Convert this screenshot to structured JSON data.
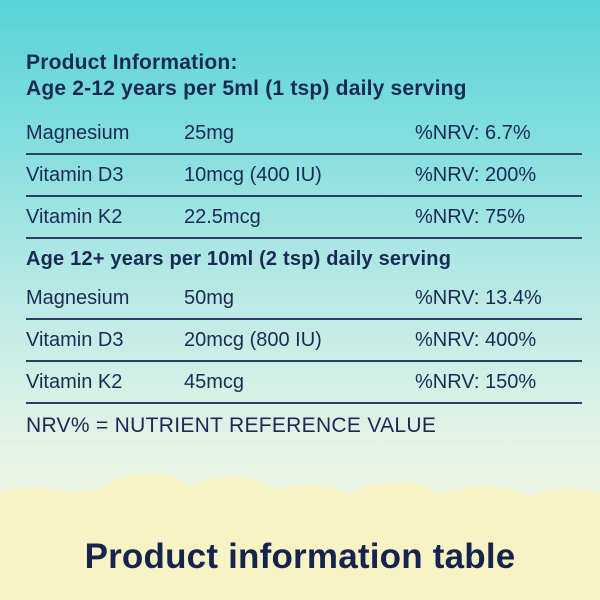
{
  "header": {
    "line1": "Product Information:",
    "line2": "Age 2-12 years per 5ml (1 tsp) daily serving"
  },
  "table1": {
    "rows": [
      {
        "name": "Magnesium",
        "amount": "25mg",
        "nrv": "%NRV: 6.7%"
      },
      {
        "name": "Vitamin D3",
        "amount": "10mcg (400 IU)",
        "nrv": "%NRV: 200%"
      },
      {
        "name": "Vitamin K2",
        "amount": "22.5mcg",
        "nrv": "%NRV: 75%"
      }
    ]
  },
  "section2": {
    "title": "Age 12+ years per 10ml (2 tsp) daily serving"
  },
  "table2": {
    "rows": [
      {
        "name": "Magnesium",
        "amount": "50mg",
        "nrv": "%NRV: 13.4%"
      },
      {
        "name": "Vitamin D3",
        "amount": "20mcg (800 IU)",
        "nrv": "%NRV: 400%"
      },
      {
        "name": "Vitamin K2",
        "amount": "45mcg",
        "nrv": "%NRV: 150%"
      }
    ]
  },
  "footnote": "NRV% = NUTRIENT REFERENCE VALUE",
  "banner": {
    "text": "Product information table",
    "color": "#f8f3c4"
  }
}
